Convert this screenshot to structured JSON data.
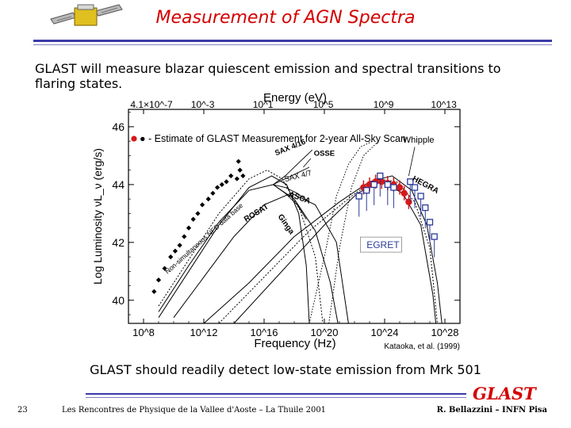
{
  "slide": {
    "title": "Measurement of AGN Spectra",
    "intro": "GLAST will measure blazar quiescent emission and spectral transitions to flaring states.",
    "conclusion": "GLAST should readily detect low-state emission from Mrk 501",
    "logo": "GLAST",
    "page_number": "23",
    "conference": "Les Rencontres de Physique de la Vallee d'Aoste – La Thuile 2001",
    "author": "R. Bellazzini – INFN Pisa"
  },
  "chart_data": {
    "type": "scatter",
    "title": "",
    "xlabel": "Frequency (Hz)",
    "ylabel": "Log Luminosity νL_ν (erg/s)",
    "top_axis_label": "Energy (eV)",
    "x_scale": "log",
    "xlim_log10": [
      7,
      29
    ],
    "ylim": [
      39.2,
      46.6
    ],
    "x_ticks": [
      "10^8",
      "10^12",
      "10^16",
      "10^20",
      "10^24",
      "10^28"
    ],
    "y_ticks": [
      "40",
      "42",
      "44",
      "46"
    ],
    "top_ticks": [
      "4.1×10^-7",
      "10^-3",
      "10^1",
      "10^5",
      "10^9",
      "10^13"
    ],
    "legend": "● - Estimate of GLAST Measurement for 2-year All-Sky Scan",
    "legend_position": "top",
    "citation": "Kataoka, et al. (1999)",
    "annotations": [
      "Non-simultaneous NED data base",
      "ROSAT",
      "Ginga",
      "ASCA",
      "SAX 4/7",
      "SAX 4/16",
      "OSSE",
      "EGRET",
      "Whipple",
      "HEGRA"
    ],
    "series": [
      {
        "name": "Non-simultaneous NED data base",
        "marker": "diamond",
        "color": "#000000",
        "points": [
          [
            8.7,
            40.3
          ],
          [
            9.0,
            40.7
          ],
          [
            9.4,
            41.1
          ],
          [
            9.8,
            41.5
          ],
          [
            10.1,
            41.7
          ],
          [
            10.4,
            41.9
          ],
          [
            10.7,
            42.2
          ],
          [
            11.0,
            42.5
          ],
          [
            11.3,
            42.8
          ],
          [
            11.6,
            43.0
          ],
          [
            11.9,
            43.3
          ],
          [
            12.3,
            43.5
          ],
          [
            12.6,
            43.7
          ],
          [
            12.9,
            43.9
          ],
          [
            13.2,
            44.0
          ],
          [
            13.5,
            44.1
          ],
          [
            13.8,
            44.3
          ],
          [
            14.2,
            44.2
          ],
          [
            14.4,
            44.5
          ],
          [
            14.3,
            44.8
          ],
          [
            14.6,
            44.3
          ]
        ]
      },
      {
        "name": "GLAST estimate",
        "marker": "circle",
        "color": "#d81818",
        "points": [
          [
            22.6,
            43.9
          ],
          [
            23.0,
            44.0
          ],
          [
            23.4,
            44.1
          ],
          [
            23.8,
            44.1
          ],
          [
            24.2,
            44.05
          ],
          [
            24.6,
            44.0
          ],
          [
            25.0,
            43.9
          ],
          [
            25.3,
            43.7
          ],
          [
            25.6,
            43.4
          ]
        ]
      },
      {
        "name": "EGRET",
        "marker": "open-square",
        "color": "#2a3a9a",
        "points": [
          [
            22.3,
            43.6
          ],
          [
            22.8,
            43.8
          ],
          [
            23.3,
            44.0
          ],
          [
            23.7,
            44.3
          ],
          [
            24.6,
            43.9
          ],
          [
            24.2,
            44.0
          ]
        ]
      },
      {
        "name": "Whipple / HEGRA",
        "marker": "open-square",
        "color": "#2a3a9a",
        "points": [
          [
            25.7,
            44.1
          ],
          [
            26.0,
            43.9
          ],
          [
            26.4,
            43.6
          ],
          [
            26.7,
            43.2
          ],
          [
            27.0,
            42.7
          ],
          [
            27.3,
            42.2
          ]
        ]
      }
    ]
  }
}
